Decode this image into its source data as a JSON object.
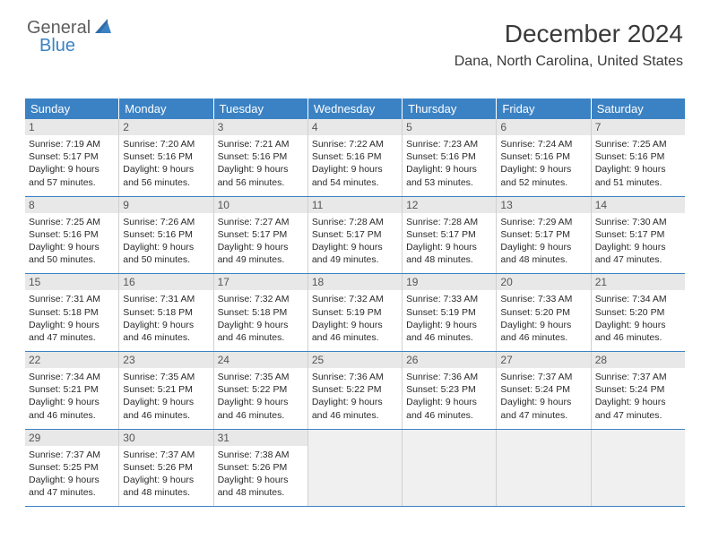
{
  "logo": {
    "text1": "General",
    "text2": "Blue"
  },
  "header": {
    "month_title": "December 2024",
    "location": "Dana, North Carolina, United States"
  },
  "calendar": {
    "type": "table",
    "header_bg": "#3b82c4",
    "header_fg": "#ffffff",
    "row_border_color": "#3b82c4",
    "cell_border_color": "#d0d0d0",
    "daynum_bg": "#e8e8e8",
    "empty_bg": "#f0f0f0",
    "text_color": "#2a2a2a",
    "weekdays": [
      "Sunday",
      "Monday",
      "Tuesday",
      "Wednesday",
      "Thursday",
      "Friday",
      "Saturday"
    ],
    "weeks": [
      [
        {
          "num": "1",
          "sunrise": "Sunrise: 7:19 AM",
          "sunset": "Sunset: 5:17 PM",
          "daylight": "Daylight: 9 hours and 57 minutes."
        },
        {
          "num": "2",
          "sunrise": "Sunrise: 7:20 AM",
          "sunset": "Sunset: 5:16 PM",
          "daylight": "Daylight: 9 hours and 56 minutes."
        },
        {
          "num": "3",
          "sunrise": "Sunrise: 7:21 AM",
          "sunset": "Sunset: 5:16 PM",
          "daylight": "Daylight: 9 hours and 56 minutes."
        },
        {
          "num": "4",
          "sunrise": "Sunrise: 7:22 AM",
          "sunset": "Sunset: 5:16 PM",
          "daylight": "Daylight: 9 hours and 54 minutes."
        },
        {
          "num": "5",
          "sunrise": "Sunrise: 7:23 AM",
          "sunset": "Sunset: 5:16 PM",
          "daylight": "Daylight: 9 hours and 53 minutes."
        },
        {
          "num": "6",
          "sunrise": "Sunrise: 7:24 AM",
          "sunset": "Sunset: 5:16 PM",
          "daylight": "Daylight: 9 hours and 52 minutes."
        },
        {
          "num": "7",
          "sunrise": "Sunrise: 7:25 AM",
          "sunset": "Sunset: 5:16 PM",
          "daylight": "Daylight: 9 hours and 51 minutes."
        }
      ],
      [
        {
          "num": "8",
          "sunrise": "Sunrise: 7:25 AM",
          "sunset": "Sunset: 5:16 PM",
          "daylight": "Daylight: 9 hours and 50 minutes."
        },
        {
          "num": "9",
          "sunrise": "Sunrise: 7:26 AM",
          "sunset": "Sunset: 5:16 PM",
          "daylight": "Daylight: 9 hours and 50 minutes."
        },
        {
          "num": "10",
          "sunrise": "Sunrise: 7:27 AM",
          "sunset": "Sunset: 5:17 PM",
          "daylight": "Daylight: 9 hours and 49 minutes."
        },
        {
          "num": "11",
          "sunrise": "Sunrise: 7:28 AM",
          "sunset": "Sunset: 5:17 PM",
          "daylight": "Daylight: 9 hours and 49 minutes."
        },
        {
          "num": "12",
          "sunrise": "Sunrise: 7:28 AM",
          "sunset": "Sunset: 5:17 PM",
          "daylight": "Daylight: 9 hours and 48 minutes."
        },
        {
          "num": "13",
          "sunrise": "Sunrise: 7:29 AM",
          "sunset": "Sunset: 5:17 PM",
          "daylight": "Daylight: 9 hours and 48 minutes."
        },
        {
          "num": "14",
          "sunrise": "Sunrise: 7:30 AM",
          "sunset": "Sunset: 5:17 PM",
          "daylight": "Daylight: 9 hours and 47 minutes."
        }
      ],
      [
        {
          "num": "15",
          "sunrise": "Sunrise: 7:31 AM",
          "sunset": "Sunset: 5:18 PM",
          "daylight": "Daylight: 9 hours and 47 minutes."
        },
        {
          "num": "16",
          "sunrise": "Sunrise: 7:31 AM",
          "sunset": "Sunset: 5:18 PM",
          "daylight": "Daylight: 9 hours and 46 minutes."
        },
        {
          "num": "17",
          "sunrise": "Sunrise: 7:32 AM",
          "sunset": "Sunset: 5:18 PM",
          "daylight": "Daylight: 9 hours and 46 minutes."
        },
        {
          "num": "18",
          "sunrise": "Sunrise: 7:32 AM",
          "sunset": "Sunset: 5:19 PM",
          "daylight": "Daylight: 9 hours and 46 minutes."
        },
        {
          "num": "19",
          "sunrise": "Sunrise: 7:33 AM",
          "sunset": "Sunset: 5:19 PM",
          "daylight": "Daylight: 9 hours and 46 minutes."
        },
        {
          "num": "20",
          "sunrise": "Sunrise: 7:33 AM",
          "sunset": "Sunset: 5:20 PM",
          "daylight": "Daylight: 9 hours and 46 minutes."
        },
        {
          "num": "21",
          "sunrise": "Sunrise: 7:34 AM",
          "sunset": "Sunset: 5:20 PM",
          "daylight": "Daylight: 9 hours and 46 minutes."
        }
      ],
      [
        {
          "num": "22",
          "sunrise": "Sunrise: 7:34 AM",
          "sunset": "Sunset: 5:21 PM",
          "daylight": "Daylight: 9 hours and 46 minutes."
        },
        {
          "num": "23",
          "sunrise": "Sunrise: 7:35 AM",
          "sunset": "Sunset: 5:21 PM",
          "daylight": "Daylight: 9 hours and 46 minutes."
        },
        {
          "num": "24",
          "sunrise": "Sunrise: 7:35 AM",
          "sunset": "Sunset: 5:22 PM",
          "daylight": "Daylight: 9 hours and 46 minutes."
        },
        {
          "num": "25",
          "sunrise": "Sunrise: 7:36 AM",
          "sunset": "Sunset: 5:22 PM",
          "daylight": "Daylight: 9 hours and 46 minutes."
        },
        {
          "num": "26",
          "sunrise": "Sunrise: 7:36 AM",
          "sunset": "Sunset: 5:23 PM",
          "daylight": "Daylight: 9 hours and 46 minutes."
        },
        {
          "num": "27",
          "sunrise": "Sunrise: 7:37 AM",
          "sunset": "Sunset: 5:24 PM",
          "daylight": "Daylight: 9 hours and 47 minutes."
        },
        {
          "num": "28",
          "sunrise": "Sunrise: 7:37 AM",
          "sunset": "Sunset: 5:24 PM",
          "daylight": "Daylight: 9 hours and 47 minutes."
        }
      ],
      [
        {
          "num": "29",
          "sunrise": "Sunrise: 7:37 AM",
          "sunset": "Sunset: 5:25 PM",
          "daylight": "Daylight: 9 hours and 47 minutes."
        },
        {
          "num": "30",
          "sunrise": "Sunrise: 7:37 AM",
          "sunset": "Sunset: 5:26 PM",
          "daylight": "Daylight: 9 hours and 48 minutes."
        },
        {
          "num": "31",
          "sunrise": "Sunrise: 7:38 AM",
          "sunset": "Sunset: 5:26 PM",
          "daylight": "Daylight: 9 hours and 48 minutes."
        },
        null,
        null,
        null,
        null
      ]
    ]
  }
}
